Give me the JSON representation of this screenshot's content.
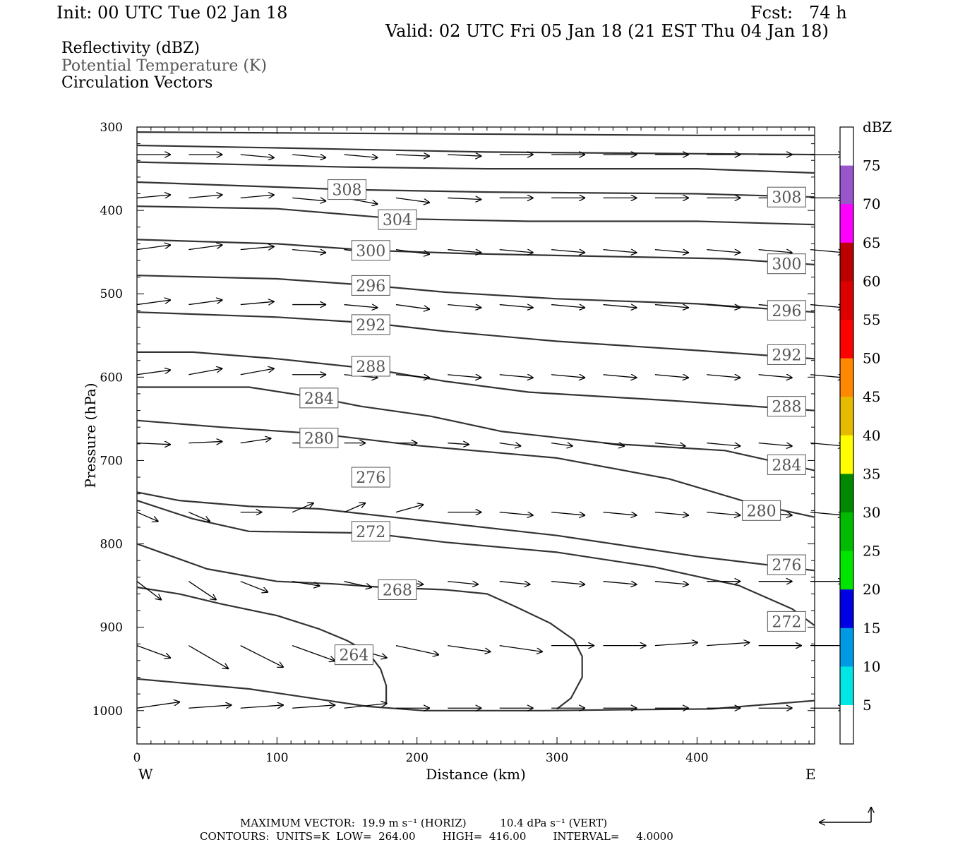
{
  "header": {
    "init": "Init: 00 UTC Tue 02 Jan 18",
    "fcst": "Fcst:   74 h",
    "valid": "Valid: 02 UTC Fri 05 Jan 18 (21 EST Thu 04 Jan 18)"
  },
  "legend": {
    "fields": [
      "Reflectivity (dBZ)",
      "Potential Temperature (K)",
      "Circulation Vectors"
    ]
  },
  "footer": {
    "line1": "MAXIMUM VECTOR:  19.9 m s⁻¹ (HORIZ)          10.4 dPa s⁻¹ (VERT)",
    "line2": "CONTOURS:  UNITS=K  LOW=  264.00        HIGH=  416.00        INTERVAL=     4.0000"
  },
  "colorbar": {
    "unit": "dBZ",
    "labels": [
      "5",
      "10",
      "15",
      "20",
      "25",
      "30",
      "35",
      "40",
      "45",
      "50",
      "55",
      "60",
      "65",
      "70",
      "75"
    ],
    "colors": [
      "#ffffff",
      "#00e5e5",
      "#0099e5",
      "#0000e5",
      "#00e500",
      "#00bb00",
      "#008800",
      "#ffff00",
      "#e5bb00",
      "#ff8800",
      "#ff0000",
      "#dd0000",
      "#bb0000",
      "#ff00ff",
      "#9955cc",
      "#ffffff"
    ]
  },
  "chart_data": {
    "type": "line",
    "title": "",
    "xlabel": "Distance (km)",
    "ylabel": "Pressure (hPa)",
    "xlim": [
      0,
      484
    ],
    "ylim": [
      1040,
      300
    ],
    "y_scale": "linear, inverted",
    "x_ticks": [
      "0",
      "100",
      "200",
      "300",
      "400"
    ],
    "y_ticks": [
      "300",
      "400",
      "500",
      "600",
      "700",
      "800",
      "900",
      "1000"
    ],
    "x_end_labels": {
      "left": "W",
      "right": "E"
    },
    "contour_units": "K",
    "contours": [
      {
        "label": "264",
        "line_color": "#333333",
        "points": [
          [
            0,
            962
          ],
          [
            80,
            974
          ],
          [
            165,
            995
          ],
          [
            205,
            1000
          ],
          [
            245,
            1000
          ],
          [
            290,
            1000
          ],
          [
            340,
            999
          ],
          [
            410,
            998
          ],
          [
            484,
            988
          ]
        ],
        "label_at": [
          [
            155,
            933
          ]
        ]
      },
      {
        "label": "264",
        "line_color": "#333333",
        "points": [
          [
            0,
            852
          ],
          [
            30,
            860
          ],
          [
            60,
            872
          ],
          [
            100,
            886
          ],
          [
            130,
            902
          ],
          [
            150,
            916
          ],
          [
            165,
            930
          ],
          [
            174,
            950
          ],
          [
            178,
            970
          ],
          [
            178,
            992
          ]
        ],
        "label_at": []
      },
      {
        "label": "268",
        "line_color": "#333333",
        "points": [
          [
            0,
            800
          ],
          [
            20,
            812
          ],
          [
            50,
            830
          ],
          [
            100,
            845
          ],
          [
            140,
            848
          ],
          [
            175,
            852
          ],
          [
            220,
            855
          ],
          [
            250,
            860
          ],
          [
            270,
            875
          ],
          [
            295,
            895
          ],
          [
            312,
            915
          ],
          [
            318,
            935
          ],
          [
            318,
            960
          ],
          [
            310,
            985
          ],
          [
            300,
            998
          ]
        ],
        "label_at": [
          [
            186,
            855
          ]
        ]
      },
      {
        "label": "272",
        "line_color": "#333333",
        "points": [
          [
            0,
            748
          ],
          [
            40,
            770
          ],
          [
            80,
            785
          ],
          [
            165,
            787
          ],
          [
            220,
            798
          ],
          [
            300,
            810
          ],
          [
            370,
            828
          ],
          [
            430,
            850
          ],
          [
            468,
            878
          ],
          [
            484,
            898
          ]
        ],
        "label_at": [
          [
            167,
            785
          ],
          [
            464,
            893
          ]
        ]
      },
      {
        "label": "276",
        "line_color": "#333333",
        "points": [
          [
            0,
            738
          ],
          [
            30,
            748
          ],
          [
            80,
            755
          ],
          [
            130,
            758
          ],
          [
            167,
            765
          ],
          [
            220,
            775
          ],
          [
            300,
            790
          ],
          [
            400,
            815
          ],
          [
            484,
            832
          ]
        ],
        "label_at": [
          [
            167,
            720
          ],
          [
            464,
            825
          ]
        ]
      },
      {
        "label": "280",
        "line_color": "#333333",
        "points": [
          [
            0,
            652
          ],
          [
            60,
            660
          ],
          [
            130,
            668
          ],
          [
            200,
            682
          ],
          [
            300,
            697
          ],
          [
            380,
            722
          ],
          [
            440,
            752
          ],
          [
            484,
            768
          ]
        ],
        "label_at": [
          [
            130,
            673
          ],
          [
            446,
            760
          ]
        ]
      },
      {
        "label": "284",
        "line_color": "#333333",
        "points": [
          [
            0,
            612
          ],
          [
            80,
            612
          ],
          [
            130,
            625
          ],
          [
            160,
            635
          ],
          [
            210,
            647
          ],
          [
            260,
            665
          ],
          [
            340,
            680
          ],
          [
            420,
            688
          ],
          [
            484,
            712
          ]
        ],
        "label_at": [
          [
            130,
            625
          ],
          [
            464,
            705
          ]
        ]
      },
      {
        "label": "288",
        "line_color": "#333333",
        "points": [
          [
            0,
            570
          ],
          [
            40,
            570
          ],
          [
            100,
            578
          ],
          [
            167,
            590
          ],
          [
            220,
            605
          ],
          [
            280,
            618
          ],
          [
            380,
            628
          ],
          [
            484,
            640
          ]
        ],
        "label_at": [
          [
            167,
            587
          ],
          [
            464,
            635
          ]
        ]
      },
      {
        "label": "292",
        "line_color": "#333333",
        "points": [
          [
            0,
            522
          ],
          [
            100,
            528
          ],
          [
            167,
            535
          ],
          [
            220,
            545
          ],
          [
            300,
            557
          ],
          [
            400,
            568
          ],
          [
            484,
            578
          ]
        ],
        "label_at": [
          [
            167,
            537
          ],
          [
            464,
            573
          ]
        ]
      },
      {
        "label": "296",
        "line_color": "#333333",
        "points": [
          [
            0,
            478
          ],
          [
            100,
            482
          ],
          [
            167,
            490
          ],
          [
            220,
            498
          ],
          [
            300,
            506
          ],
          [
            400,
            512
          ],
          [
            484,
            522
          ]
        ],
        "label_at": [
          [
            167,
            490
          ],
          [
            464,
            520
          ]
        ]
      },
      {
        "label": "300",
        "line_color": "#333333",
        "points": [
          [
            0,
            435
          ],
          [
            100,
            440
          ],
          [
            167,
            448
          ],
          [
            240,
            452
          ],
          [
            330,
            455
          ],
          [
            420,
            458
          ],
          [
            484,
            465
          ]
        ],
        "label_at": [
          [
            167,
            448
          ],
          [
            464,
            464
          ]
        ]
      },
      {
        "label": "304",
        "line_color": "#333333",
        "points": [
          [
            0,
            395
          ],
          [
            100,
            398
          ],
          [
            186,
            410
          ],
          [
            280,
            413
          ],
          [
            400,
            413
          ],
          [
            484,
            417
          ]
        ],
        "label_at": [
          [
            186,
            411
          ]
        ]
      },
      {
        "label": "308",
        "line_color": "#333333",
        "points": [
          [
            0,
            366
          ],
          [
            100,
            372
          ],
          [
            150,
            375
          ],
          [
            250,
            378
          ],
          [
            400,
            380
          ],
          [
            484,
            384
          ]
        ],
        "label_at": [
          [
            150,
            375
          ],
          [
            464,
            384
          ]
        ]
      },
      {
        "label": "",
        "line_color": "#333333",
        "points": [
          [
            0,
            342
          ],
          [
            150,
            348
          ],
          [
            250,
            350
          ],
          [
            400,
            350
          ],
          [
            484,
            355
          ]
        ],
        "label_at": []
      },
      {
        "label": "",
        "line_color": "#333333",
        "points": [
          [
            0,
            322
          ],
          [
            100,
            325
          ],
          [
            250,
            330
          ],
          [
            400,
            332
          ],
          [
            484,
            333
          ]
        ],
        "label_at": []
      },
      {
        "label": "",
        "line_color": "#333333",
        "points": [
          [
            0,
            306
          ],
          [
            200,
            308
          ],
          [
            400,
            310
          ],
          [
            484,
            310
          ]
        ],
        "label_at": []
      }
    ],
    "vector_rows": [
      {
        "p": 333,
        "dx": [
          22,
          22,
          22,
          22,
          22,
          22,
          22,
          22,
          22,
          22,
          22,
          22,
          22,
          22
        ],
        "dp": [
          0,
          0,
          2,
          2,
          2,
          1,
          1,
          0,
          0,
          0,
          0,
          0,
          0,
          0
        ]
      },
      {
        "p": 385,
        "dx": [
          22,
          22,
          22,
          22,
          22,
          22,
          22,
          22,
          22,
          22,
          22,
          22,
          22,
          22
        ],
        "dp": [
          -2,
          -2,
          -2,
          2,
          4,
          3,
          1,
          0,
          0,
          0,
          0,
          0,
          0,
          0
        ]
      },
      {
        "p": 447,
        "dx": [
          22,
          22,
          22,
          22,
          22,
          22,
          22,
          22,
          22,
          22,
          22,
          22,
          22,
          22
        ],
        "dp": [
          -3,
          -3,
          -2,
          2,
          3,
          3,
          2,
          2,
          2,
          2,
          2,
          2,
          2,
          2
        ]
      },
      {
        "p": 513,
        "dx": [
          22,
          22,
          22,
          22,
          22,
          22,
          22,
          22,
          22,
          22,
          22,
          22,
          22,
          22
        ],
        "dp": [
          -3,
          -3,
          -2,
          0,
          2,
          3,
          2,
          2,
          2,
          2,
          2,
          2,
          2,
          2
        ]
      },
      {
        "p": 597,
        "dx": [
          22,
          22,
          22,
          22,
          22,
          22,
          22,
          22,
          22,
          22,
          22,
          22,
          22,
          22
        ],
        "dp": [
          -3,
          -4,
          -4,
          0,
          2,
          2,
          2,
          2,
          2,
          2,
          2,
          2,
          2,
          2
        ]
      },
      {
        "p": 679,
        "dx": [
          22,
          22,
          20,
          18,
          14,
          14,
          14,
          14,
          14,
          14,
          20,
          22,
          22,
          22
        ],
        "dp": [
          1,
          -1,
          -3,
          0,
          0,
          0,
          1,
          2,
          2,
          2,
          2,
          2,
          2,
          2
        ]
      },
      {
        "p": 762,
        "dx": [
          14,
          14,
          14,
          14,
          14,
          18,
          22,
          22,
          22,
          22,
          22,
          22,
          22,
          22
        ],
        "dp": [
          6,
          6,
          0,
          -6,
          -6,
          -5,
          0,
          2,
          2,
          2,
          2,
          2,
          2,
          2
        ]
      },
      {
        "p": 845,
        "dx": [
          16,
          18,
          18,
          18,
          18,
          18,
          20,
          20,
          22,
          22,
          22,
          22,
          22,
          22
        ],
        "dp": [
          12,
          12,
          7,
          3,
          4,
          2,
          2,
          2,
          2,
          2,
          2,
          0,
          0,
          0
        ]
      },
      {
        "p": 922,
        "dx": [
          22,
          26,
          28,
          28,
          28,
          28,
          28,
          28,
          28,
          28,
          28,
          28,
          28,
          28
        ],
        "dp": [
          8,
          15,
          14,
          10,
          8,
          6,
          4,
          4,
          0,
          0,
          -2,
          -2,
          0,
          0
        ]
      },
      {
        "p": 997,
        "dx": [
          28,
          28,
          28,
          28,
          28,
          22,
          22,
          22,
          22,
          22,
          22,
          22,
          22,
          22
        ],
        "dp": [
          -4,
          -2,
          -2,
          -2,
          -3,
          0,
          0,
          0,
          0,
          0,
          0,
          0,
          0,
          0
        ]
      }
    ]
  }
}
